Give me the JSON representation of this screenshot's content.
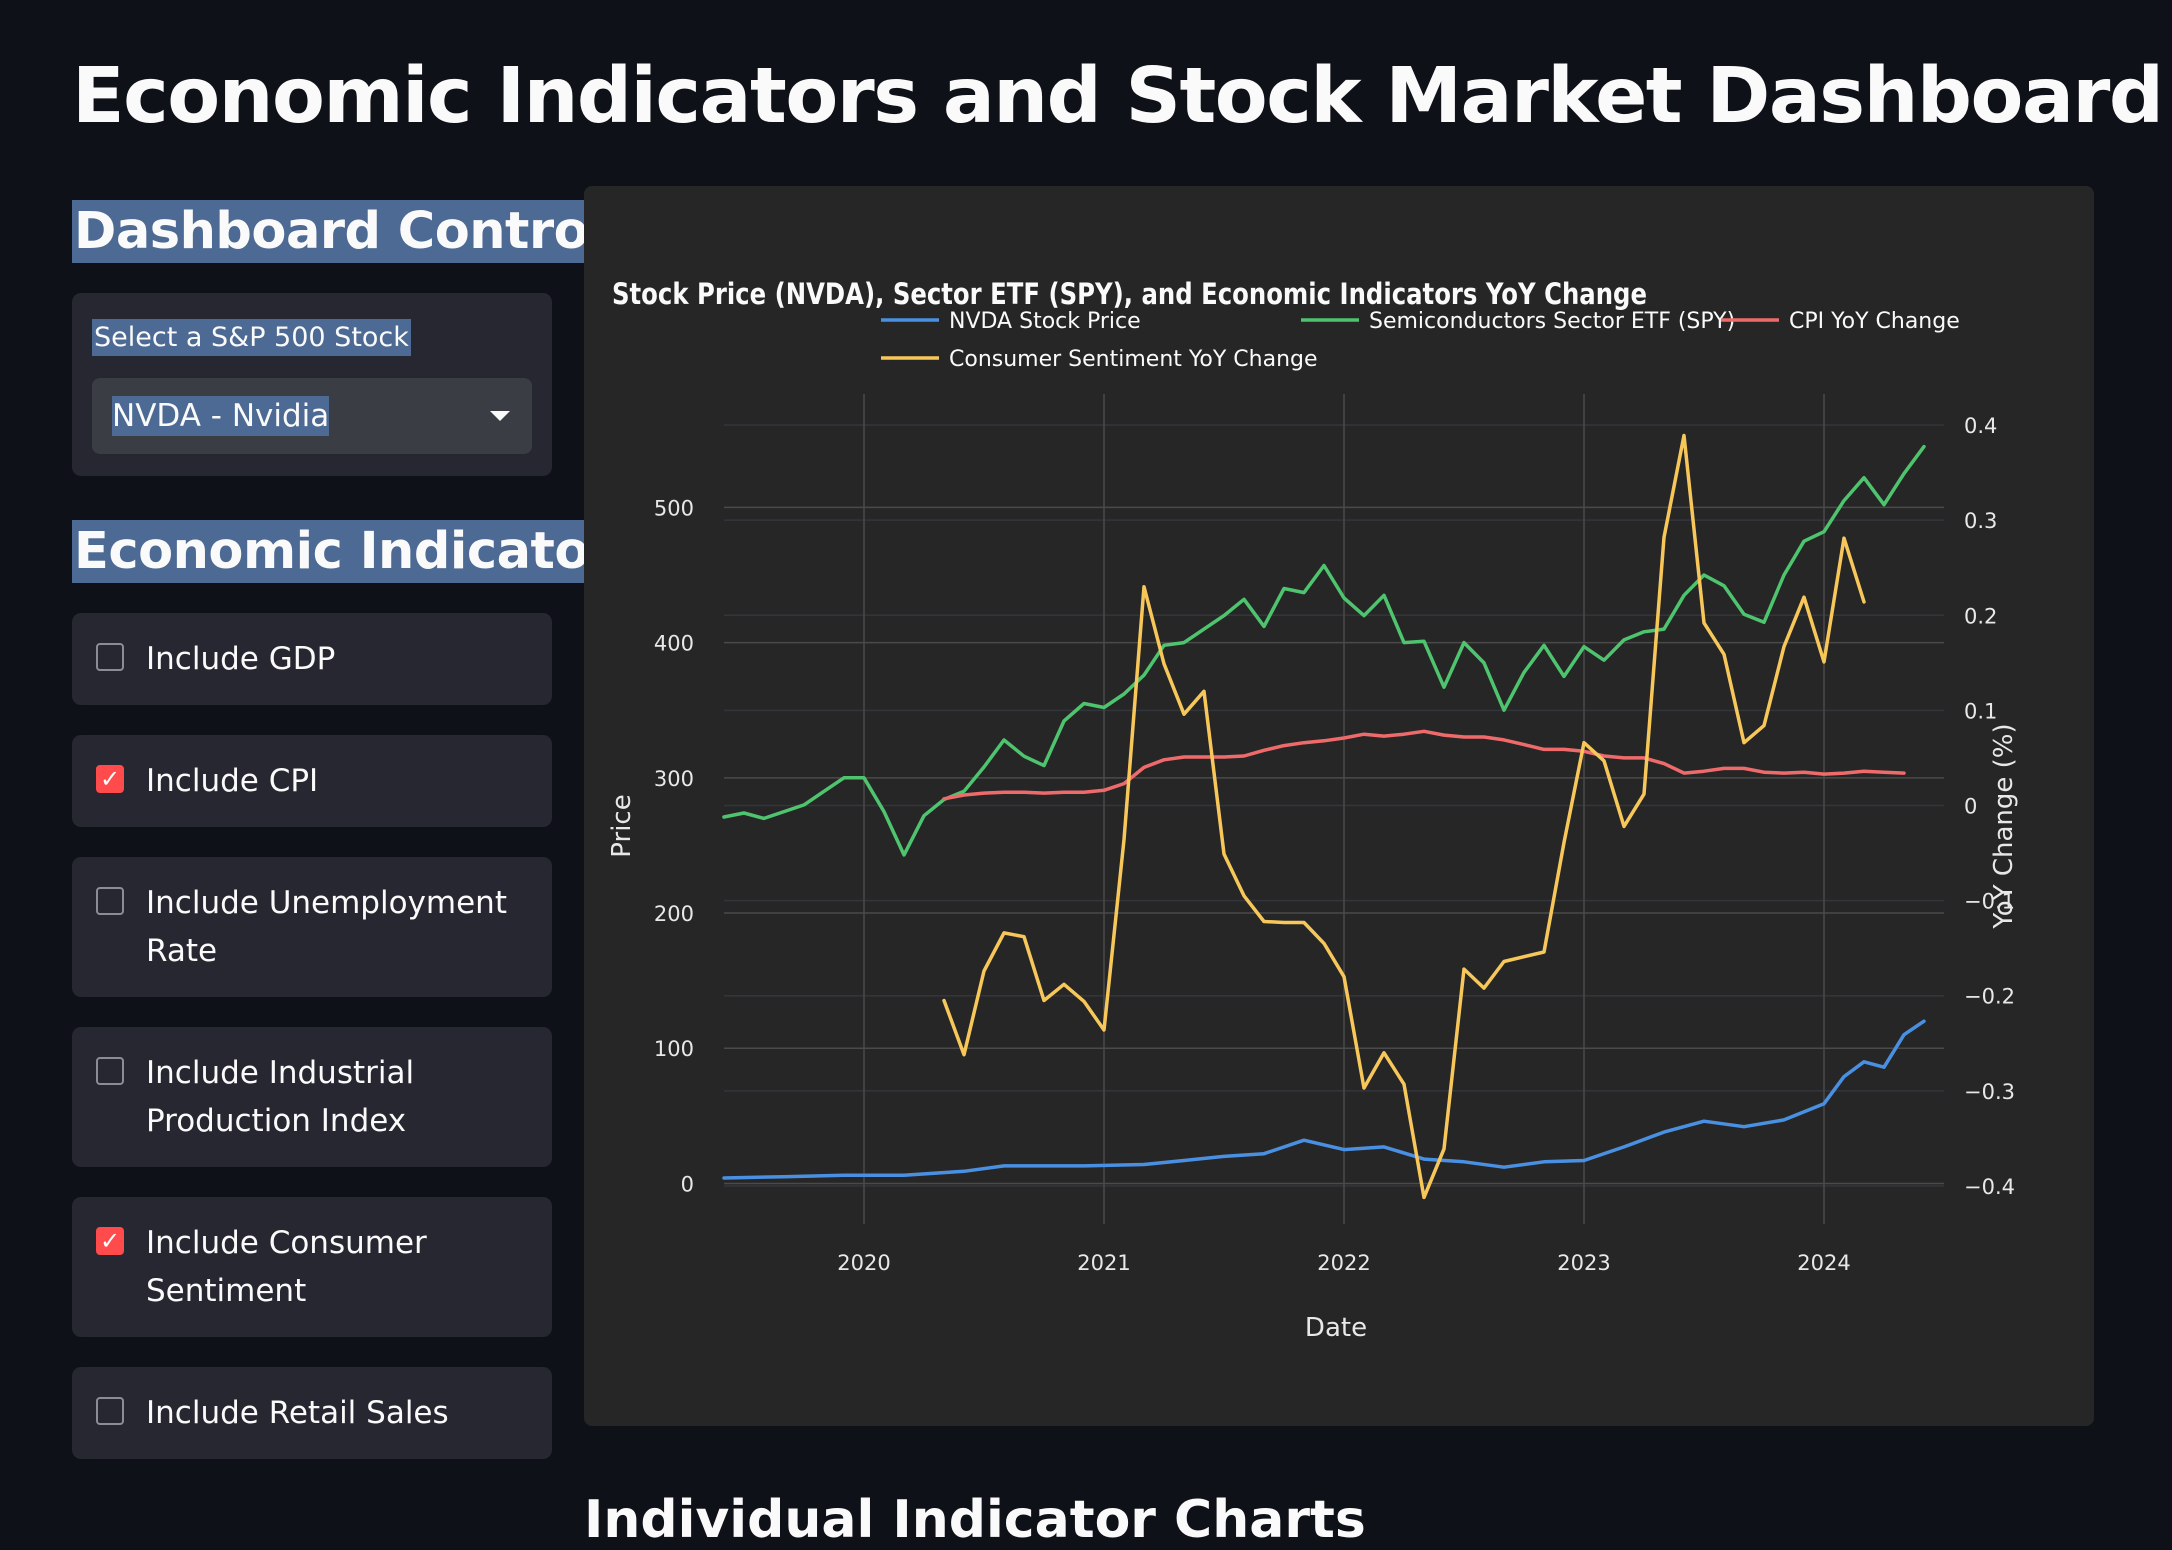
{
  "page": {
    "title": "Economic Indicators and Stock Market Dashboard"
  },
  "sidebar": {
    "controls_heading": "Dashboard Controls",
    "select_label": "Select a S&P 500 Stock",
    "select_value": "NVDA - Nvidia",
    "indicators_heading": "Economic Indicators",
    "checkboxes": [
      {
        "lines": [
          "Include GDP"
        ],
        "checked": false
      },
      {
        "lines": [
          "Include CPI"
        ],
        "checked": true
      },
      {
        "lines": [
          "Include Unemployment",
          "Rate"
        ],
        "checked": false
      },
      {
        "lines": [
          "Include Industrial",
          "Production Index"
        ],
        "checked": false
      },
      {
        "lines": [
          "Include Consumer",
          "Sentiment"
        ],
        "checked": true
      },
      {
        "lines": [
          "Include Retail Sales"
        ],
        "checked": false
      }
    ]
  },
  "next_section_heading": "Individual Indicator Charts",
  "chart_data": {
    "type": "line",
    "title": "Stock Price (NVDA), Sector ETF (SPY), and Economic Indicators YoY Change",
    "xlabel": "Date",
    "ylabel": "Price",
    "y2label": "YoY Change (%)",
    "x_ticks": [
      "2020",
      "2021",
      "2022",
      "2023",
      "2024"
    ],
    "y_ticks": [
      0,
      100,
      200,
      300,
      400,
      500
    ],
    "y2_ticks": [
      "0.4",
      "0.3",
      "0.2",
      "0.1",
      "0",
      "−0.1",
      "−0.2",
      "−0.3",
      "−0.4"
    ],
    "xlim": [
      "2019-06",
      "2024-07"
    ],
    "ylim": [
      -30,
      575
    ],
    "y2lim": [
      -0.44,
      0.42
    ],
    "grid": true,
    "legend": "top",
    "series": [
      {
        "name": "NVDA Stock Price",
        "axis": "y",
        "color": "#4a90e2",
        "points": [
          [
            "2019-06",
            4
          ],
          [
            "2019-09",
            5
          ],
          [
            "2019-12",
            6
          ],
          [
            "2020-03",
            6
          ],
          [
            "2020-06",
            9
          ],
          [
            "2020-08",
            13
          ],
          [
            "2020-10",
            13
          ],
          [
            "2020-12",
            13
          ],
          [
            "2021-03",
            14
          ],
          [
            "2021-05",
            17
          ],
          [
            "2021-07",
            20
          ],
          [
            "2021-09",
            22
          ],
          [
            "2021-11",
            32
          ],
          [
            "2022-01",
            25
          ],
          [
            "2022-03",
            27
          ],
          [
            "2022-05",
            18
          ],
          [
            "2022-07",
            16
          ],
          [
            "2022-09",
            12
          ],
          [
            "2022-11",
            16
          ],
          [
            "2023-01",
            17
          ],
          [
            "2023-03",
            27
          ],
          [
            "2023-05",
            38
          ],
          [
            "2023-07",
            46
          ],
          [
            "2023-09",
            42
          ],
          [
            "2023-11",
            47
          ],
          [
            "2024-01",
            59
          ],
          [
            "2024-02",
            79
          ],
          [
            "2024-03",
            90
          ],
          [
            "2024-04",
            86
          ],
          [
            "2024-05",
            110
          ],
          [
            "2024-06",
            120
          ]
        ]
      },
      {
        "name": "Semiconductors Sector ETF (SPY)",
        "axis": "y",
        "color": "#4fc46e",
        "points": [
          [
            "2019-06",
            271
          ],
          [
            "2019-07",
            274
          ],
          [
            "2019-08",
            270
          ],
          [
            "2019-09",
            275
          ],
          [
            "2019-10",
            280
          ],
          [
            "2019-11",
            290
          ],
          [
            "2019-12",
            300
          ],
          [
            "2020-01",
            300
          ],
          [
            "2020-02",
            275
          ],
          [
            "2020-03",
            243
          ],
          [
            "2020-04",
            272
          ],
          [
            "2020-05",
            284
          ],
          [
            "2020-06",
            290
          ],
          [
            "2020-07",
            308
          ],
          [
            "2020-08",
            328
          ],
          [
            "2020-09",
            316
          ],
          [
            "2020-10",
            309
          ],
          [
            "2020-11",
            342
          ],
          [
            "2020-12",
            355
          ],
          [
            "2021-01",
            352
          ],
          [
            "2021-02",
            362
          ],
          [
            "2021-03",
            376
          ],
          [
            "2021-04",
            398
          ],
          [
            "2021-05",
            400
          ],
          [
            "2021-06",
            410
          ],
          [
            "2021-07",
            420
          ],
          [
            "2021-08",
            432
          ],
          [
            "2021-09",
            412
          ],
          [
            "2021-10",
            440
          ],
          [
            "2021-11",
            437
          ],
          [
            "2021-12",
            457
          ],
          [
            "2022-01",
            433
          ],
          [
            "2022-02",
            420
          ],
          [
            "2022-03",
            435
          ],
          [
            "2022-04",
            400
          ],
          [
            "2022-05",
            401
          ],
          [
            "2022-06",
            367
          ],
          [
            "2022-07",
            400
          ],
          [
            "2022-08",
            385
          ],
          [
            "2022-09",
            350
          ],
          [
            "2022-10",
            378
          ],
          [
            "2022-11",
            398
          ],
          [
            "2022-12",
            375
          ],
          [
            "2023-01",
            397
          ],
          [
            "2023-02",
            387
          ],
          [
            "2023-03",
            402
          ],
          [
            "2023-04",
            408
          ],
          [
            "2023-05",
            410
          ],
          [
            "2023-06",
            435
          ],
          [
            "2023-07",
            450
          ],
          [
            "2023-08",
            442
          ],
          [
            "2023-09",
            421
          ],
          [
            "2023-10",
            415
          ],
          [
            "2023-11",
            450
          ],
          [
            "2023-12",
            475
          ],
          [
            "2024-01",
            482
          ],
          [
            "2024-02",
            505
          ],
          [
            "2024-03",
            522
          ],
          [
            "2024-04",
            502
          ],
          [
            "2024-05",
            525
          ],
          [
            "2024-06",
            545
          ]
        ]
      },
      {
        "name": "CPI YoY Change",
        "axis": "y2",
        "color": "#ef6b6b",
        "points": [
          [
            "2020-05",
            0.007
          ],
          [
            "2020-06",
            0.011
          ],
          [
            "2020-07",
            0.013
          ],
          [
            "2020-08",
            0.014
          ],
          [
            "2020-09",
            0.014
          ],
          [
            "2020-10",
            0.013
          ],
          [
            "2020-11",
            0.014
          ],
          [
            "2020-12",
            0.014
          ],
          [
            "2021-01",
            0.016
          ],
          [
            "2021-02",
            0.023
          ],
          [
            "2021-03",
            0.04
          ],
          [
            "2021-04",
            0.048
          ],
          [
            "2021-05",
            0.051
          ],
          [
            "2021-06",
            0.051
          ],
          [
            "2021-07",
            0.051
          ],
          [
            "2021-08",
            0.052
          ],
          [
            "2021-09",
            0.058
          ],
          [
            "2021-10",
            0.063
          ],
          [
            "2021-11",
            0.066
          ],
          [
            "2021-12",
            0.068
          ],
          [
            "2022-01",
            0.071
          ],
          [
            "2022-02",
            0.075
          ],
          [
            "2022-03",
            0.073
          ],
          [
            "2022-04",
            0.075
          ],
          [
            "2022-05",
            0.078
          ],
          [
            "2022-06",
            0.074
          ],
          [
            "2022-07",
            0.072
          ],
          [
            "2022-08",
            0.072
          ],
          [
            "2022-09",
            0.069
          ],
          [
            "2022-10",
            0.064
          ],
          [
            "2022-11",
            0.059
          ],
          [
            "2022-12",
            0.059
          ],
          [
            "2023-01",
            0.057
          ],
          [
            "2023-02",
            0.052
          ],
          [
            "2023-03",
            0.05
          ],
          [
            "2023-04",
            0.05
          ],
          [
            "2023-05",
            0.044
          ],
          [
            "2023-06",
            0.034
          ],
          [
            "2023-07",
            0.036
          ],
          [
            "2023-08",
            0.039
          ],
          [
            "2023-09",
            0.039
          ],
          [
            "2023-10",
            0.035
          ],
          [
            "2023-11",
            0.034
          ],
          [
            "2023-12",
            0.035
          ],
          [
            "2024-01",
            0.033
          ],
          [
            "2024-02",
            0.034
          ],
          [
            "2024-03",
            0.036
          ],
          [
            "2024-04",
            0.035
          ],
          [
            "2024-05",
            0.034
          ]
        ]
      },
      {
        "name": "Consumer Sentiment YoY Change",
        "axis": "y2",
        "color": "#f7c75a",
        "points": [
          [
            "2020-05",
            -0.205
          ],
          [
            "2020-06",
            -0.262
          ],
          [
            "2020-07",
            -0.174
          ],
          [
            "2020-08",
            -0.134
          ],
          [
            "2020-09",
            -0.138
          ],
          [
            "2020-10",
            -0.205
          ],
          [
            "2020-11",
            -0.188
          ],
          [
            "2020-12",
            -0.206
          ],
          [
            "2021-01",
            -0.236
          ],
          [
            "2021-02",
            -0.036
          ],
          [
            "2021-03",
            0.23
          ],
          [
            "2021-04",
            0.149
          ],
          [
            "2021-05",
            0.096
          ],
          [
            "2021-06",
            0.12
          ],
          [
            "2021-07",
            -0.051
          ],
          [
            "2021-08",
            -0.095
          ],
          [
            "2021-09",
            -0.122
          ],
          [
            "2021-10",
            -0.123
          ],
          [
            "2021-11",
            -0.123
          ],
          [
            "2021-12",
            -0.145
          ],
          [
            "2022-01",
            -0.18
          ],
          [
            "2022-02",
            -0.297
          ],
          [
            "2022-03",
            -0.26
          ],
          [
            "2022-04",
            -0.293
          ],
          [
            "2022-05",
            -0.412
          ],
          [
            "2022-06",
            -0.361
          ],
          [
            "2022-07",
            -0.172
          ],
          [
            "2022-08",
            -0.192
          ],
          [
            "2022-09",
            -0.164
          ],
          [
            "2022-10",
            -0.159
          ],
          [
            "2022-11",
            -0.154
          ],
          [
            "2022-12",
            -0.039
          ],
          [
            "2023-01",
            0.066
          ],
          [
            "2023-02",
            0.047
          ],
          [
            "2023-03",
            -0.022
          ],
          [
            "2023-04",
            0.012
          ],
          [
            "2023-05",
            0.282
          ],
          [
            "2023-06",
            0.389
          ],
          [
            "2023-07",
            0.192
          ],
          [
            "2023-08",
            0.159
          ],
          [
            "2023-09",
            0.066
          ],
          [
            "2023-10",
            0.084
          ],
          [
            "2023-11",
            0.167
          ],
          [
            "2023-12",
            0.219
          ],
          [
            "2024-01",
            0.151
          ],
          [
            "2024-02",
            0.281
          ],
          [
            "2024-03",
            0.214
          ]
        ]
      }
    ]
  }
}
